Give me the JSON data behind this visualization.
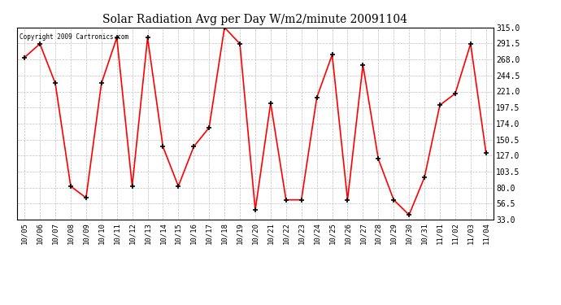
{
  "title": "Solar Radiation Avg per Day W/m2/minute 20091104",
  "copyright": "Copyright 2009 Cartronics.com",
  "dates": [
    "10/05",
    "10/06",
    "10/07",
    "10/08",
    "10/09",
    "10/10",
    "10/11",
    "10/12",
    "10/13",
    "10/14",
    "10/15",
    "10/16",
    "10/17",
    "10/18",
    "10/19",
    "10/20",
    "10/21",
    "10/22",
    "10/23",
    "10/24",
    "10/25",
    "10/26",
    "10/27",
    "10/28",
    "10/29",
    "10/30",
    "10/31",
    "11/01",
    "11/02",
    "11/03",
    "11/04"
  ],
  "values": [
    271,
    291,
    233,
    82,
    65,
    233,
    300,
    82,
    300,
    140,
    82,
    140,
    168,
    315,
    291,
    47,
    204,
    62,
    62,
    212,
    275,
    62,
    260,
    122,
    62,
    40,
    95,
    201,
    218,
    291,
    131
  ],
  "line_color": "#FF0000",
  "marker_color": "#000000",
  "bg_color": "#FFFFFF",
  "grid_color": "#C0C0C0",
  "ylim_min": 33.0,
  "ylim_max": 315.0,
  "yticks": [
    33.0,
    56.5,
    80.0,
    103.5,
    127.0,
    150.5,
    174.0,
    197.5,
    221.0,
    244.5,
    268.0,
    291.5,
    315.0
  ]
}
